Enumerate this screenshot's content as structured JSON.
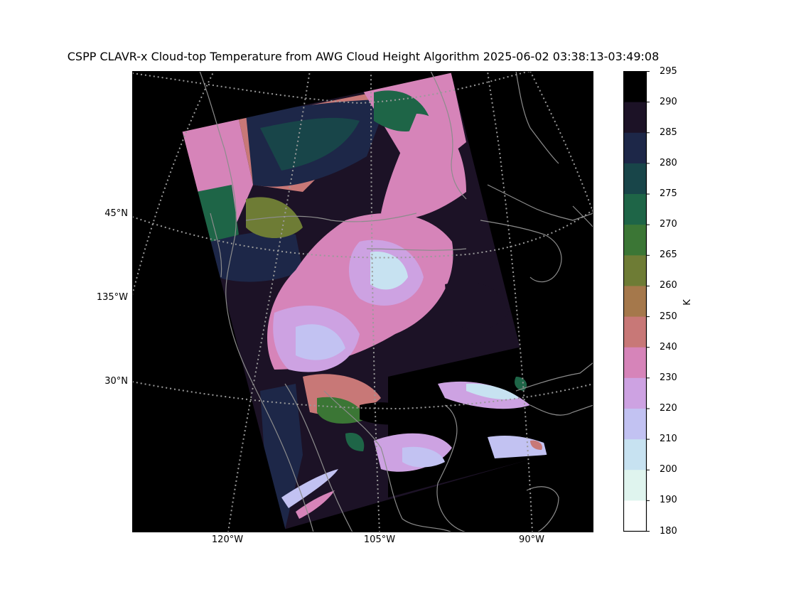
{
  "title": "CSPP CLAVR-x Cloud-top Temperature from AWG Cloud Height Algorithm 2025-06-02 03:38:13-03:49:08",
  "map": {
    "projection": "lambert-conformal",
    "background": "#000000",
    "coastline_color": "#8c8c8c",
    "gridline_color": "#9a9a9a",
    "lat_labels": [
      "45°N",
      "135°W",
      "30°N"
    ],
    "lon_labels": [
      "120°W",
      "105°W",
      "90°W"
    ]
  },
  "colorbar": {
    "units": "K",
    "ticks": [
      "295",
      "290",
      "285",
      "280",
      "275",
      "270",
      "265",
      "260",
      "250",
      "240",
      "230",
      "220",
      "210",
      "200",
      "190",
      "180"
    ],
    "bins": [
      {
        "from": 290,
        "to": 295,
        "color": "#000000"
      },
      {
        "from": 285,
        "to": 290,
        "color": "#1c1226"
      },
      {
        "from": 280,
        "to": 285,
        "color": "#1d2748"
      },
      {
        "from": 275,
        "to": 280,
        "color": "#184549"
      },
      {
        "from": 270,
        "to": 275,
        "color": "#1e6547"
      },
      {
        "from": 265,
        "to": 270,
        "color": "#3b7635"
      },
      {
        "from": 260,
        "to": 265,
        "color": "#6e7c35"
      },
      {
        "from": 250,
        "to": 260,
        "color": "#a5784b"
      },
      {
        "from": 240,
        "to": 250,
        "color": "#c87877"
      },
      {
        "from": 230,
        "to": 240,
        "color": "#d684b9"
      },
      {
        "from": 220,
        "to": 230,
        "color": "#cda2e2"
      },
      {
        "from": 210,
        "to": 220,
        "color": "#c2c2f2"
      },
      {
        "from": 200,
        "to": 210,
        "color": "#c7e2f1"
      },
      {
        "from": 190,
        "to": 200,
        "color": "#dff4ee"
      },
      {
        "from": 180,
        "to": 190,
        "color": "#ffffff"
      }
    ]
  }
}
